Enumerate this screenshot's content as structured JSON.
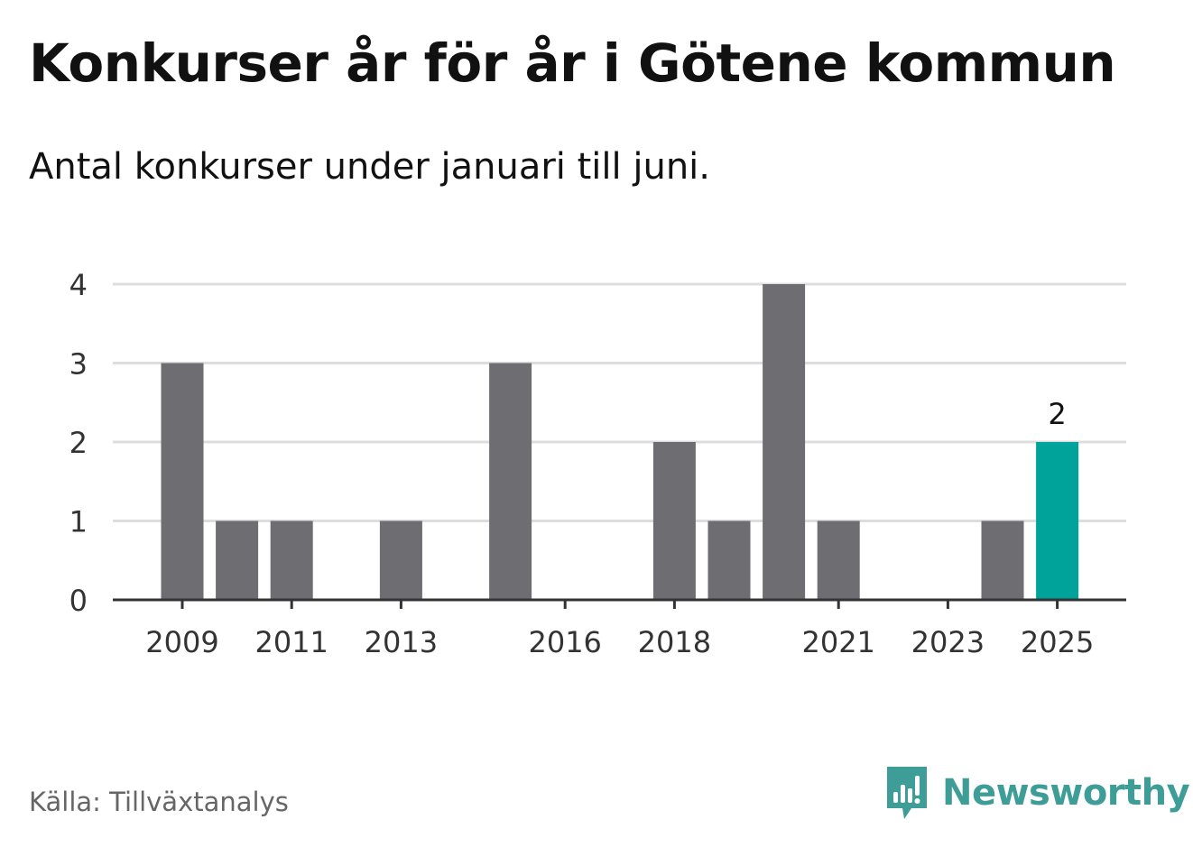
{
  "header": {
    "title": "Konkurser år för år i Götene kommun",
    "subtitle": "Antal konkurser under januari till juni."
  },
  "footer": {
    "source": "Källa: Tillväxtanalys",
    "brand": "Newsworthy",
    "brand_icon": "newsworthy-logo-icon"
  },
  "colors": {
    "bar": "#6e6d72",
    "highlight": "#00a39a",
    "grid": "#dddddd",
    "axis": "#333333",
    "brand": "#3e9e97"
  },
  "chart_data": {
    "type": "bar",
    "categories": [
      "2009",
      "2010",
      "2011",
      "2012",
      "2013",
      "2014",
      "2015",
      "2016",
      "2017",
      "2018",
      "2019",
      "2020",
      "2021",
      "2022",
      "2023",
      "2024",
      "2025"
    ],
    "values": [
      3,
      1,
      1,
      0,
      1,
      0,
      3,
      0,
      0,
      2,
      1,
      4,
      1,
      0,
      0,
      1,
      2
    ],
    "x_tick_labels": [
      "2009",
      "2011",
      "2013",
      "2016",
      "2018",
      "2021",
      "2023",
      "2025"
    ],
    "y_ticks": [
      0,
      1,
      2,
      3,
      4
    ],
    "ylim": [
      0,
      4
    ],
    "highlight_category": "2025",
    "data_labels": [
      {
        "category": "2025",
        "text": "2"
      }
    ],
    "grid": true,
    "legend": "none"
  }
}
